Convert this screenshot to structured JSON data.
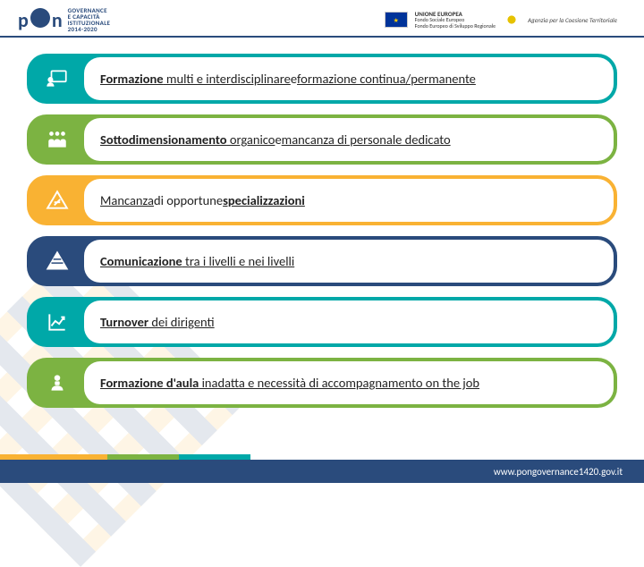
{
  "header": {
    "pon_label": "GOVERNANCE\nE CAPACITÀ\nISTITUZIONALE\n2014-2020",
    "eu_title": "UNIONE EUROPEA",
    "eu_sub": "Fondo Sociale Europeo\nFondo Europeo di Sviluppo Regionale",
    "agenzia": "Agenzia per la Coesione Territoriale"
  },
  "rows": [
    {
      "color": "#00a8a8",
      "icon": "teacher",
      "html": "<span class='u'><b>Formazione</b> multi e interdisciplinare</span> e <span class='u'>formazione continua/permanente</span>"
    },
    {
      "color": "#7cb342",
      "icon": "people",
      "html": "<span class='u'><b>Sottodimensionamento</b> organico</span> e <span class='u'>mancanza di personale dedicato</span>"
    },
    {
      "color": "#f9b233",
      "icon": "warn",
      "html": "<span class='u'>Mancanza</span>  di opportune <span class='u'><b>specializzazioni</b></span>"
    },
    {
      "color": "#2a4b7c",
      "icon": "pyramid",
      "html": "<span class='u'><b>Comunicazione</b> tra i livelli e nei livelli</span>"
    },
    {
      "color": "#00a8a8",
      "icon": "chart",
      "html": "<span class='u'><b>Turnover</b> dei dirigenti</span>"
    },
    {
      "color": "#7cb342",
      "icon": "person",
      "html": "<span class='u'><b>Formazione d'aula</b> inadatta e necessità di accompagnamento on the job</span>"
    }
  ],
  "footer": {
    "url": "www.pongovernance1420.gov.it"
  },
  "icons_svg": {
    "teacher": "<svg viewBox='0 0 24 24' fill='none' stroke='white' stroke-width='1.6'><rect x='6' y='4' width='15' height='11' rx='1'/><circle cx='5' cy='13' r='2' fill='white'/><path d='M2 20c0-2 1.5-3.5 3-3.5s3 1.5 3 3.5' fill='white'/></svg>",
    "people": "<svg viewBox='0 0 24 24' fill='white'><circle cx='6' cy='6' r='2.2'/><circle cx='12' cy='6' r='2.2'/><circle cx='18' cy='6' r='2.2'/><path d='M3 20v-6c0-1.5 1-2.5 3-2.5s3 1 3 2.5v6M9 20v-6c0-1.5 1-2.5 3-2.5s3 1 3 2.5v6M15 20v-6c0-1.5 1-2.5 3-2.5s3 1 3 2.5v6'/></svg>",
    "warn": "<svg viewBox='0 0 24 24' fill='none' stroke='white' stroke-width='1.8'><path d='M12 3 L22 20 H2 Z'/><path d='M9 14 L15 14 M15 11 L9 17' stroke='white'/></svg>",
    "pyramid": "<svg viewBox='0 0 24 24' fill='none' stroke='white' stroke-width='1.6'><path d='M12 3 L22 20 H2 Z' fill='white'/><path d='M6 14 H18 M8 10 H16' stroke='#2a4b7c' stroke-width='1.4'/></svg>",
    "chart": "<svg viewBox='0 0 24 24' fill='none' stroke='white' stroke-width='1.8'><path d='M4 4 V20 H20'/><path d='M6 16 L10 11 L14 14 L19 7'/><path d='M16 7 H19 V10'/></svg>",
    "person": "<svg viewBox='0 0 24 24' fill='white'><circle cx='12' cy='7' r='3'/><path d='M6 20c0-3 2-5 6-5s6 2 6 5'/><rect x='10' y='11' width='4' height='3' rx='.5' fill='white' stroke='white'/></svg>"
  }
}
